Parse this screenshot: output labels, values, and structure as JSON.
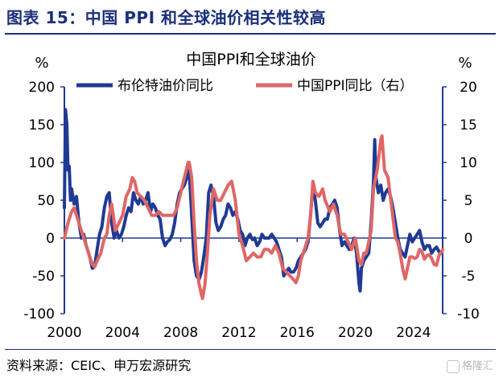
{
  "figure": {
    "title": "图表 15：中国 PPI 和全球油价相关性较高",
    "source": "资料来源：CEIC、申万宏源研究",
    "watermark": "格隆汇"
  },
  "colors": {
    "oil": "#1f3a93",
    "ppi": "#e06666",
    "axis": "#1f3a93",
    "title": "#1b2f7a"
  },
  "chart_data": {
    "type": "line",
    "title": "中国PPI和全球油价",
    "y_left": {
      "unit": "%",
      "ylim": [
        -100,
        200
      ],
      "ticks": [
        -100,
        -50,
        0,
        50,
        100,
        150,
        200
      ]
    },
    "y_right": {
      "unit": "%",
      "ylim": [
        -10,
        20
      ],
      "ticks": [
        -10,
        -5,
        0,
        5,
        10,
        15,
        20
      ]
    },
    "x": {
      "xlim": [
        2000,
        2026
      ],
      "ticks": [
        2000,
        2004,
        2008,
        2012,
        2016,
        2020,
        2024
      ]
    },
    "grid": false,
    "legend": "top",
    "series": [
      {
        "name": "布伦特油价同比",
        "axis": "left",
        "points": [
          [
            2000.0,
            40
          ],
          [
            2000.08,
            170
          ],
          [
            2000.17,
            150
          ],
          [
            2000.25,
            90
          ],
          [
            2000.33,
            95
          ],
          [
            2000.42,
            50
          ],
          [
            2000.5,
            65
          ],
          [
            2000.67,
            45
          ],
          [
            2000.83,
            55
          ],
          [
            2001.0,
            20
          ],
          [
            2001.17,
            0
          ],
          [
            2001.33,
            5
          ],
          [
            2001.5,
            -10
          ],
          [
            2001.75,
            -25
          ],
          [
            2001.92,
            -40
          ],
          [
            2002.08,
            -38
          ],
          [
            2002.25,
            -15
          ],
          [
            2002.42,
            5
          ],
          [
            2002.58,
            15
          ],
          [
            2002.75,
            40
          ],
          [
            2002.92,
            55
          ],
          [
            2003.08,
            60
          ],
          [
            2003.25,
            20
          ],
          [
            2003.42,
            0
          ],
          [
            2003.58,
            10
          ],
          [
            2003.75,
            0
          ],
          [
            2003.92,
            5
          ],
          [
            2004.08,
            15
          ],
          [
            2004.25,
            30
          ],
          [
            2004.42,
            40
          ],
          [
            2004.58,
            35
          ],
          [
            2004.75,
            60
          ],
          [
            2004.92,
            50
          ],
          [
            2005.08,
            45
          ],
          [
            2005.25,
            55
          ],
          [
            2005.42,
            45
          ],
          [
            2005.58,
            50
          ],
          [
            2005.75,
            60
          ],
          [
            2005.92,
            35
          ],
          [
            2006.08,
            45
          ],
          [
            2006.25,
            40
          ],
          [
            2006.42,
            30
          ],
          [
            2006.58,
            25
          ],
          [
            2006.75,
            0
          ],
          [
            2006.92,
            -10
          ],
          [
            2007.08,
            -5
          ],
          [
            2007.25,
            -2
          ],
          [
            2007.42,
            5
          ],
          [
            2007.58,
            20
          ],
          [
            2007.75,
            45
          ],
          [
            2007.92,
            60
          ],
          [
            2008.08,
            65
          ],
          [
            2008.25,
            70
          ],
          [
            2008.42,
            80
          ],
          [
            2008.58,
            90
          ],
          [
            2008.75,
            30
          ],
          [
            2008.92,
            -30
          ],
          [
            2009.08,
            -50
          ],
          [
            2009.25,
            -55
          ],
          [
            2009.42,
            -45
          ],
          [
            2009.58,
            -25
          ],
          [
            2009.75,
            0
          ],
          [
            2009.92,
            60
          ],
          [
            2010.08,
            70
          ],
          [
            2010.25,
            55
          ],
          [
            2010.42,
            20
          ],
          [
            2010.58,
            10
          ],
          [
            2010.75,
            15
          ],
          [
            2010.92,
            25
          ],
          [
            2011.08,
            30
          ],
          [
            2011.25,
            45
          ],
          [
            2011.42,
            40
          ],
          [
            2011.58,
            30
          ],
          [
            2011.75,
            35
          ],
          [
            2011.92,
            25
          ],
          [
            2012.08,
            10
          ],
          [
            2012.25,
            5
          ],
          [
            2012.42,
            -10
          ],
          [
            2012.58,
            0
          ],
          [
            2012.75,
            5
          ],
          [
            2012.92,
            -2
          ],
          [
            2013.08,
            0
          ],
          [
            2013.25,
            -10
          ],
          [
            2013.42,
            -5
          ],
          [
            2013.58,
            5
          ],
          [
            2013.75,
            0
          ],
          [
            2013.92,
            0
          ],
          [
            2014.08,
            0
          ],
          [
            2014.25,
            5
          ],
          [
            2014.42,
            0
          ],
          [
            2014.58,
            -5
          ],
          [
            2014.75,
            -15
          ],
          [
            2014.92,
            -25
          ],
          [
            2015.08,
            -50
          ],
          [
            2015.25,
            -45
          ],
          [
            2015.42,
            -40
          ],
          [
            2015.58,
            -45
          ],
          [
            2015.75,
            -45
          ],
          [
            2015.92,
            -40
          ],
          [
            2016.08,
            -30
          ],
          [
            2016.25,
            -25
          ],
          [
            2016.42,
            -20
          ],
          [
            2016.58,
            -15
          ],
          [
            2016.75,
            -5
          ],
          [
            2016.92,
            30
          ],
          [
            2017.08,
            70
          ],
          [
            2017.25,
            50
          ],
          [
            2017.42,
            20
          ],
          [
            2017.58,
            15
          ],
          [
            2017.75,
            20
          ],
          [
            2017.92,
            25
          ],
          [
            2018.08,
            25
          ],
          [
            2018.25,
            40
          ],
          [
            2018.42,
            45
          ],
          [
            2018.58,
            50
          ],
          [
            2018.75,
            40
          ],
          [
            2018.92,
            10
          ],
          [
            2019.08,
            -10
          ],
          [
            2019.25,
            -5
          ],
          [
            2019.42,
            -10
          ],
          [
            2019.58,
            -15
          ],
          [
            2019.75,
            -10
          ],
          [
            2019.92,
            0
          ],
          [
            2020.08,
            -20
          ],
          [
            2020.25,
            -60
          ],
          [
            2020.33,
            -70
          ],
          [
            2020.42,
            -40
          ],
          [
            2020.58,
            -30
          ],
          [
            2020.75,
            -25
          ],
          [
            2020.92,
            -20
          ],
          [
            2021.08,
            20
          ],
          [
            2021.25,
            75
          ],
          [
            2021.33,
            130
          ],
          [
            2021.42,
            80
          ],
          [
            2021.58,
            60
          ],
          [
            2021.75,
            70
          ],
          [
            2021.92,
            50
          ],
          [
            2022.08,
            60
          ],
          [
            2022.25,
            65
          ],
          [
            2022.42,
            55
          ],
          [
            2022.58,
            40
          ],
          [
            2022.75,
            20
          ],
          [
            2022.92,
            0
          ],
          [
            2023.08,
            -15
          ],
          [
            2023.25,
            -20
          ],
          [
            2023.42,
            -25
          ],
          [
            2023.58,
            -10
          ],
          [
            2023.75,
            5
          ],
          [
            2023.92,
            -5
          ],
          [
            2024.08,
            0
          ],
          [
            2024.25,
            5
          ],
          [
            2024.42,
            10
          ],
          [
            2024.58,
            -5
          ],
          [
            2024.75,
            -15
          ],
          [
            2024.92,
            -10
          ],
          [
            2025.08,
            -10
          ],
          [
            2025.25,
            -20
          ],
          [
            2025.42,
            -15
          ],
          [
            2025.58,
            -12
          ],
          [
            2025.75,
            -18
          ]
        ]
      },
      {
        "name": "中国PPI同比（右）",
        "axis": "right",
        "points": [
          [
            2000.0,
            0
          ],
          [
            2000.25,
            2
          ],
          [
            2000.5,
            3.5
          ],
          [
            2000.67,
            4
          ],
          [
            2000.83,
            3
          ],
          [
            2001.0,
            2
          ],
          [
            2001.25,
            0.5
          ],
          [
            2001.5,
            -1
          ],
          [
            2001.75,
            -2.5
          ],
          [
            2001.92,
            -3.5
          ],
          [
            2002.08,
            -3.8
          ],
          [
            2002.25,
            -3
          ],
          [
            2002.5,
            -2
          ],
          [
            2002.75,
            0
          ],
          [
            2002.92,
            0.5
          ],
          [
            2003.08,
            3
          ],
          [
            2003.25,
            4.5
          ],
          [
            2003.5,
            1
          ],
          [
            2003.75,
            2
          ],
          [
            2004.0,
            3
          ],
          [
            2004.25,
            5.5
          ],
          [
            2004.5,
            6.5
          ],
          [
            2004.67,
            8
          ],
          [
            2004.83,
            7.5
          ],
          [
            2005.0,
            6
          ],
          [
            2005.25,
            5.5
          ],
          [
            2005.5,
            5
          ],
          [
            2005.75,
            4
          ],
          [
            2006.0,
            3
          ],
          [
            2006.25,
            3
          ],
          [
            2006.5,
            3.5
          ],
          [
            2006.75,
            3
          ],
          [
            2007.0,
            3
          ],
          [
            2007.25,
            3
          ],
          [
            2007.5,
            3
          ],
          [
            2007.75,
            4
          ],
          [
            2008.0,
            6
          ],
          [
            2008.25,
            8
          ],
          [
            2008.5,
            10
          ],
          [
            2008.58,
            10
          ],
          [
            2008.75,
            8
          ],
          [
            2008.92,
            2
          ],
          [
            2009.08,
            -3
          ],
          [
            2009.25,
            -6
          ],
          [
            2009.42,
            -7.5
          ],
          [
            2009.5,
            -8
          ],
          [
            2009.67,
            -6
          ],
          [
            2009.83,
            -2
          ],
          [
            2010.0,
            3
          ],
          [
            2010.25,
            6.5
          ],
          [
            2010.5,
            5
          ],
          [
            2010.75,
            5
          ],
          [
            2011.0,
            6
          ],
          [
            2011.25,
            7
          ],
          [
            2011.5,
            7.5
          ],
          [
            2011.75,
            5
          ],
          [
            2012.0,
            0.5
          ],
          [
            2012.25,
            -1
          ],
          [
            2012.5,
            -3
          ],
          [
            2012.75,
            -2.5
          ],
          [
            2013.0,
            -2
          ],
          [
            2013.25,
            -2.5
          ],
          [
            2013.5,
            -2.5
          ],
          [
            2013.75,
            -1.5
          ],
          [
            2014.0,
            -1.5
          ],
          [
            2014.25,
            -2
          ],
          [
            2014.5,
            -1
          ],
          [
            2014.75,
            -2
          ],
          [
            2015.0,
            -4
          ],
          [
            2015.25,
            -4.5
          ],
          [
            2015.5,
            -5
          ],
          [
            2015.75,
            -5.5
          ],
          [
            2015.92,
            -5.9
          ],
          [
            2016.08,
            -5
          ],
          [
            2016.25,
            -3
          ],
          [
            2016.5,
            -1.5
          ],
          [
            2016.75,
            0
          ],
          [
            2016.92,
            3
          ],
          [
            2017.08,
            7.5
          ],
          [
            2017.25,
            6
          ],
          [
            2017.5,
            5.5
          ],
          [
            2017.75,
            6.5
          ],
          [
            2017.92,
            5
          ],
          [
            2018.25,
            3.5
          ],
          [
            2018.5,
            4.5
          ],
          [
            2018.75,
            3
          ],
          [
            2019.0,
            0.5
          ],
          [
            2019.25,
            0.5
          ],
          [
            2019.5,
            -0.5
          ],
          [
            2019.75,
            -1.5
          ],
          [
            2020.0,
            0
          ],
          [
            2020.25,
            -3
          ],
          [
            2020.42,
            -3.5
          ],
          [
            2020.58,
            -2
          ],
          [
            2020.75,
            -2
          ],
          [
            2020.92,
            -0.5
          ],
          [
            2021.08,
            1
          ],
          [
            2021.25,
            6.5
          ],
          [
            2021.5,
            9
          ],
          [
            2021.75,
            13
          ],
          [
            2021.83,
            13.5
          ],
          [
            2022.0,
            9
          ],
          [
            2022.25,
            8
          ],
          [
            2022.5,
            4
          ],
          [
            2022.75,
            0
          ],
          [
            2022.92,
            -0.5
          ],
          [
            2023.08,
            -2
          ],
          [
            2023.25,
            -4
          ],
          [
            2023.42,
            -5.4
          ],
          [
            2023.58,
            -4
          ],
          [
            2023.75,
            -2.5
          ],
          [
            2023.92,
            -2.5
          ],
          [
            2024.08,
            -2.7
          ],
          [
            2024.25,
            -2.5
          ],
          [
            2024.42,
            -1.5
          ],
          [
            2024.58,
            -1.8
          ],
          [
            2024.75,
            -2.8
          ],
          [
            2024.92,
            -2.3
          ],
          [
            2025.08,
            -2.2
          ],
          [
            2025.25,
            -2.7
          ],
          [
            2025.42,
            -3.5
          ],
          [
            2025.58,
            -3.6
          ],
          [
            2025.75,
            -2.3
          ],
          [
            2025.92,
            -1.9
          ],
          [
            2026.0,
            -1.5
          ]
        ]
      }
    ]
  }
}
